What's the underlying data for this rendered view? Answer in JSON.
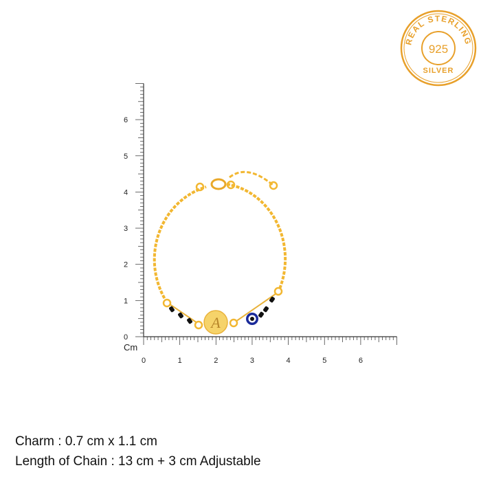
{
  "badge": {
    "top_text": "REAL STERLING",
    "center_text": "925",
    "bottom_text": "SILVER",
    "color": "#E8A02A"
  },
  "ruler": {
    "unit_label": "Cm",
    "x_ticks": [
      "0",
      "1",
      "2",
      "3",
      "4",
      "5",
      "6"
    ],
    "y_ticks": [
      "0",
      "1",
      "2",
      "3",
      "4",
      "5",
      "6"
    ],
    "range_cm": [
      0,
      7
    ]
  },
  "product": {
    "charm_letter": "A",
    "metal_color": "#F2B731",
    "bead_color": "#111111",
    "evil_eye_color": "#1a2a9a"
  },
  "specs": {
    "charm": "Charm : 0.7 cm x 1.1 cm",
    "length": "Length of Chain : 13 cm + 3 cm Adjustable"
  }
}
